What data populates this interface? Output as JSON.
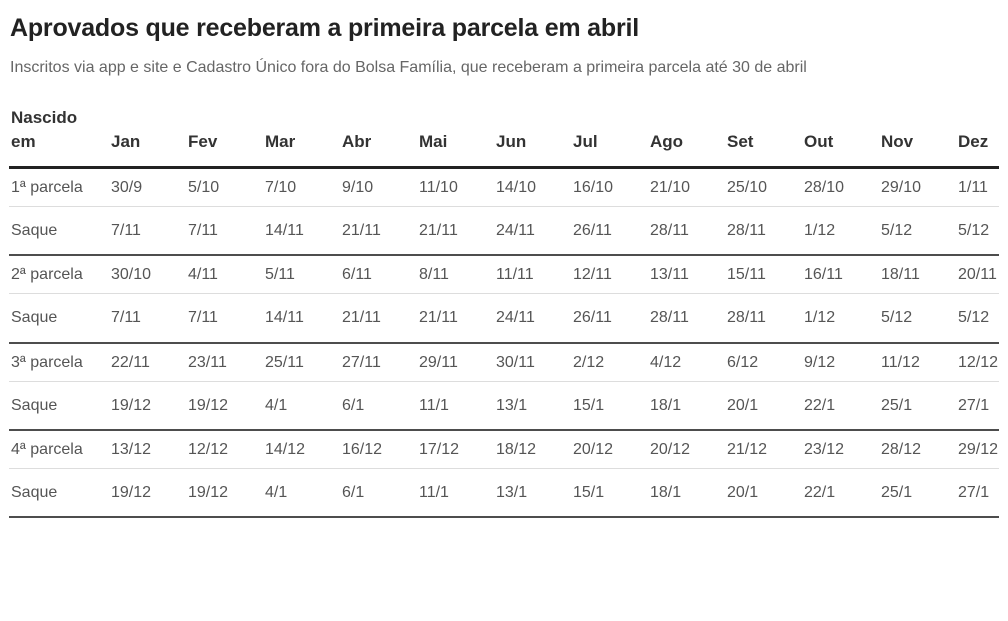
{
  "chart_data": {
    "type": "table",
    "title": "Aprovados que receberam a primeira parcela em abril",
    "subtitle": "Inscritos via app e site e Cadastro Único fora do Bolsa Família, que receberam a primeira parcela até 30 de abril",
    "corner_header": "Nascido\nem",
    "columns": [
      "Jan",
      "Fev",
      "Mar",
      "Abr",
      "Mai",
      "Jun",
      "Jul",
      "Ago",
      "Set",
      "Out",
      "Nov",
      "Dez"
    ],
    "rows": [
      {
        "label": "1ª\nparcela",
        "type": "parcela",
        "values": [
          "30/9",
          "5/10",
          "7/10",
          "9/10",
          "11/10",
          "14/10",
          "16/10",
          "21/10",
          "25/10",
          "28/10",
          "29/10",
          "1/11"
        ]
      },
      {
        "label": "Saque",
        "type": "saque",
        "values": [
          "7/11",
          "7/11",
          "14/11",
          "21/11",
          "21/11",
          "24/11",
          "26/11",
          "28/11",
          "28/11",
          "1/12",
          "5/12",
          "5/12"
        ]
      },
      {
        "label": "2ª\nparcela",
        "type": "parcela",
        "values": [
          "30/10",
          "4/11",
          "5/11",
          "6/11",
          "8/11",
          "11/11",
          "12/11",
          "13/11",
          "15/11",
          "16/11",
          "18/11",
          "20/11"
        ]
      },
      {
        "label": "Saque",
        "type": "saque",
        "values": [
          "7/11",
          "7/11",
          "14/11",
          "21/11",
          "21/11",
          "24/11",
          "26/11",
          "28/11",
          "28/11",
          "1/12",
          "5/12",
          "5/12"
        ]
      },
      {
        "label": "3ª\nparcela",
        "type": "parcela",
        "values": [
          "22/11",
          "23/11",
          "25/11",
          "27/11",
          "29/11",
          "30/11",
          "2/12",
          "4/12",
          "6/12",
          "9/12",
          "11/12",
          "12/12"
        ]
      },
      {
        "label": "Saque",
        "type": "saque",
        "values": [
          "19/12",
          "19/12",
          "4/1",
          "6/1",
          "11/1",
          "13/1",
          "15/1",
          "18/1",
          "20/1",
          "22/1",
          "25/1",
          "27/1"
        ]
      },
      {
        "label": "4ª\nparcela",
        "type": "parcela",
        "values": [
          "13/12",
          "12/12",
          "14/12",
          "16/12",
          "17/12",
          "18/12",
          "20/12",
          "20/12",
          "21/12",
          "23/12",
          "28/12",
          "29/12"
        ]
      },
      {
        "label": "Saque",
        "type": "saque",
        "values": [
          "19/12",
          "19/12",
          "4/1",
          "6/1",
          "11/1",
          "13/1",
          "15/1",
          "18/1",
          "20/1",
          "22/1",
          "25/1",
          "27/1"
        ]
      }
    ]
  },
  "colors": {
    "background": "#ffffff",
    "title_text": "#222222",
    "subtitle_text": "#666666",
    "header_text": "#333333",
    "cell_text": "#555555",
    "rule_heavy": "#222222",
    "rule_medium": "#4d4d4d",
    "rule_light": "#dddddd"
  }
}
